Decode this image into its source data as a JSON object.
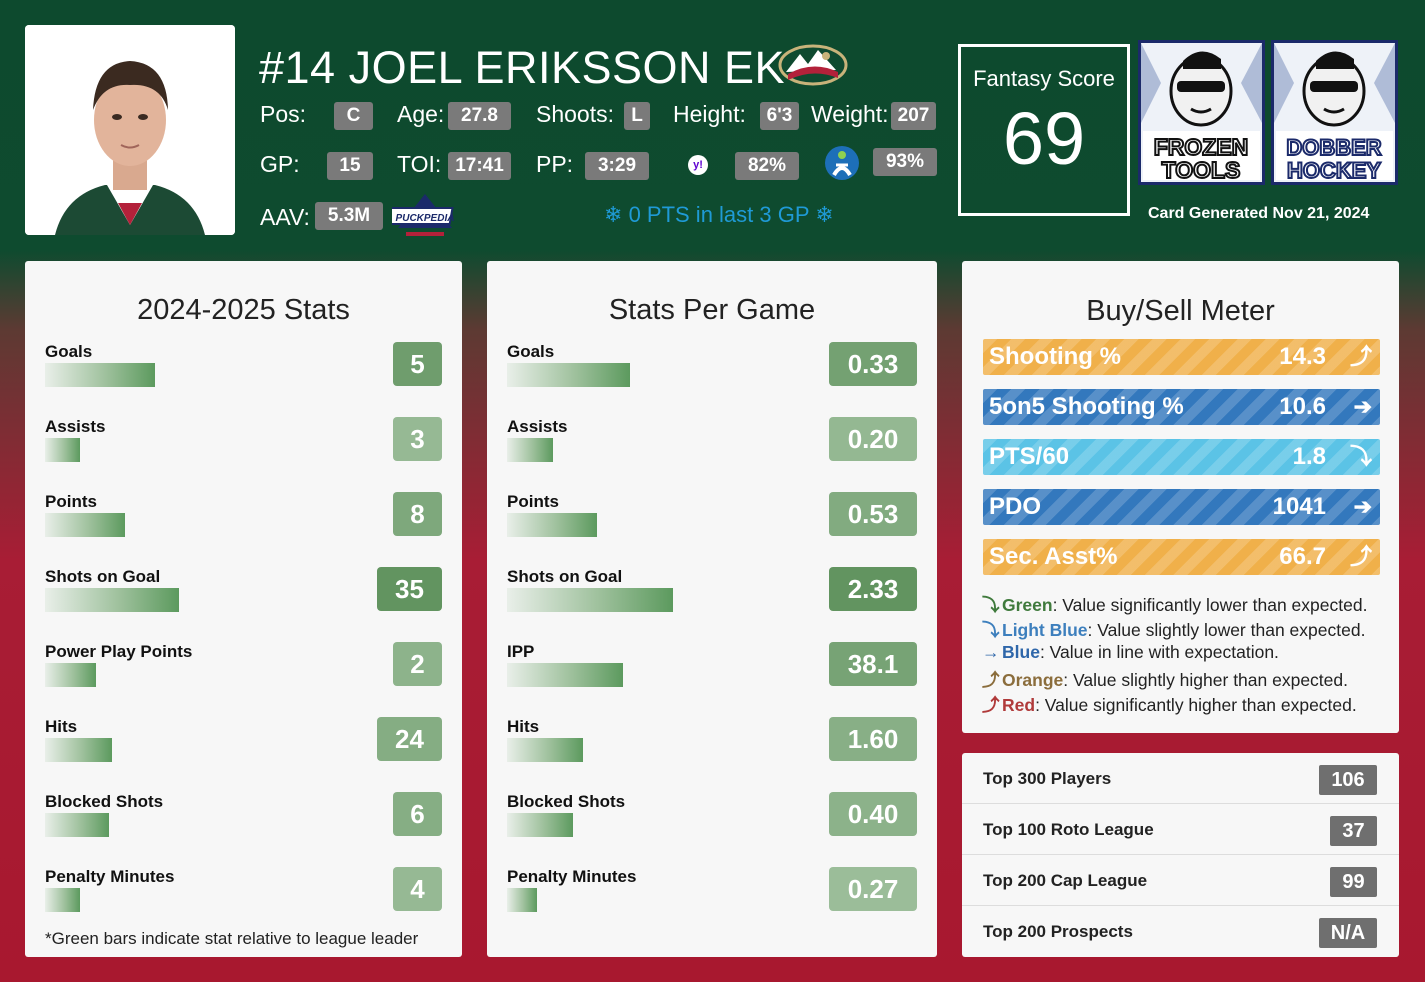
{
  "player": {
    "title": "#14 JOEL ERIKSSON EK",
    "pos_label": "Pos:",
    "pos": "C",
    "age_label": "Age:",
    "age": "27.8",
    "shoots_label": "Shoots:",
    "shoots": "L",
    "height_label": "Height:",
    "height": "6'3",
    "weight_label": "Weight:",
    "weight": "207",
    "gp_label": "GP:",
    "gp": "15",
    "toi_label": "TOI:",
    "toi": "17:41",
    "pp_label": "PP:",
    "pp": "3:29",
    "yahoo_pct": "82%",
    "espn_pct": "93%",
    "aav_label": "AAV:",
    "aav": "5.3M",
    "cold_streak": "0 PTS in last 3 GP",
    "puckpedia_text": "PUCKPEDIA"
  },
  "fantasy": {
    "label": "Fantasy Score",
    "score": "69"
  },
  "brands": {
    "frozen_tools": "FROZEN TOOLS",
    "dobber_hockey": "DOBBER HOCKEY"
  },
  "generated": "Card Generated Nov 21, 2024",
  "season_stats": {
    "title": "2024-2025 Stats",
    "rows": [
      {
        "label": "Goals",
        "value": "5",
        "fill": 0.41
      },
      {
        "label": "Assists",
        "value": "3",
        "fill": 0.13
      },
      {
        "label": "Points",
        "value": "8",
        "fill": 0.3
      },
      {
        "label": "Shots on Goal",
        "value": "35",
        "fill": 0.5
      },
      {
        "label": "Power Play Points",
        "value": "2",
        "fill": 0.19
      },
      {
        "label": "Hits",
        "value": "24",
        "fill": 0.25
      },
      {
        "label": "Blocked Shots",
        "value": "6",
        "fill": 0.24
      },
      {
        "label": "Penalty Minutes",
        "value": "4",
        "fill": 0.13
      }
    ],
    "footnote": "*Green bars indicate stat relative to league leader"
  },
  "per_game": {
    "title": "Stats Per Game",
    "rows": [
      {
        "label": "Goals",
        "value": "0.33",
        "fill": 0.37
      },
      {
        "label": "Assists",
        "value": "0.20",
        "fill": 0.14
      },
      {
        "label": "Points",
        "value": "0.53",
        "fill": 0.27
      },
      {
        "label": "Shots on Goal",
        "value": "2.33",
        "fill": 0.5
      },
      {
        "label": "IPP",
        "value": "38.1",
        "fill": 0.35
      },
      {
        "label": "Hits",
        "value": "1.60",
        "fill": 0.23
      },
      {
        "label": "Blocked Shots",
        "value": "0.40",
        "fill": 0.2
      },
      {
        "label": "Penalty Minutes",
        "value": "0.27",
        "fill": 0.09
      }
    ]
  },
  "buy_sell": {
    "title": "Buy/Sell Meter",
    "meters": [
      {
        "label": "Shooting %",
        "value": "14.3",
        "arrow": "⤴",
        "color": "#f0b04a"
      },
      {
        "label": "5on5 Shooting %",
        "value": "10.6",
        "arrow": "➔",
        "color": "#3378bd"
      },
      {
        "label": "PTS/60",
        "value": "1.8",
        "arrow": "⤵",
        "color": "#5bc3e6"
      },
      {
        "label": "PDO",
        "value": "1041",
        "arrow": "➔",
        "color": "#3378bd"
      },
      {
        "label": "Sec. Asst%",
        "value": "66.7",
        "arrow": "⤴",
        "color": "#f0b04a"
      }
    ],
    "legend": [
      {
        "icon": "⤵",
        "word": "Green",
        "text": ": Value significantly lower than expected.",
        "color": "#3f7a3c"
      },
      {
        "icon": "⤵",
        "word": "Light Blue",
        "text": ": Value slightly lower than expected.",
        "color": "#3d7fbd"
      },
      {
        "icon": "→",
        "word": "Blue",
        "text": ": Value in line with expectation.",
        "color": "#2f67aa"
      },
      {
        "icon": "⤴",
        "word": "Orange",
        "text": ": Value slightly higher than expected.",
        "color": "#8b6d3c"
      },
      {
        "icon": "⤴",
        "word": "Red",
        "text": ": Value significantly higher than expected.",
        "color": "#b03a3a"
      }
    ]
  },
  "rankings": [
    {
      "label": "Top 300 Players",
      "value": "106"
    },
    {
      "label": "Top 100 Roto League",
      "value": "37"
    },
    {
      "label": "Top 200 Cap League",
      "value": "99"
    },
    {
      "label": "Top 200 Prospects",
      "value": "N/A"
    }
  ]
}
